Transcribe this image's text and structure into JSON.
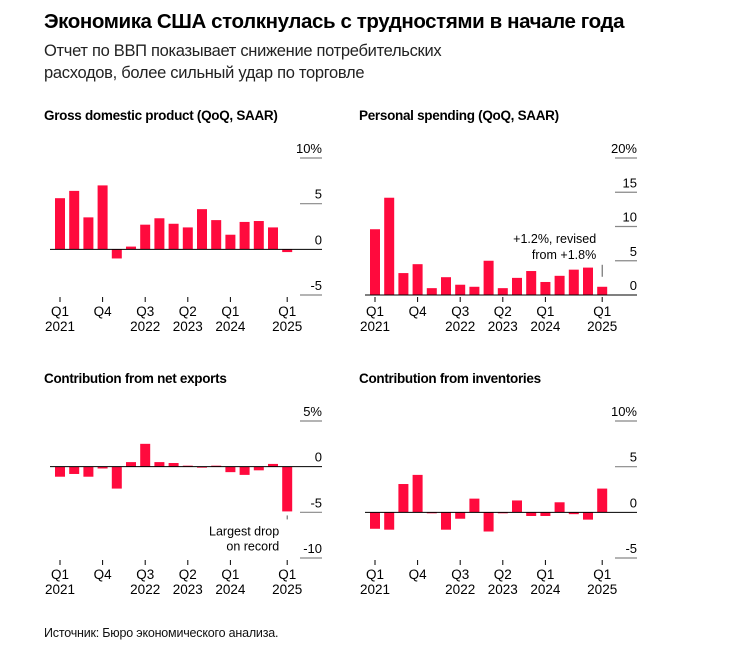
{
  "header": {
    "title": "Экономика США столкнулась с трудностями в начале года",
    "subtitle": "Отчет по ВВП показывает снижение потребительских расходов, более сильный удар по торговле"
  },
  "footer": {
    "source": "Источник: Бюро экономического анализа."
  },
  "colors": {
    "bar": "#ff0a3d",
    "axis": "#000000",
    "gridline": "#888888",
    "text": "#000000"
  },
  "chart_data": [
    {
      "type": "bar",
      "title": "Gross domestic product (QoQ, SAAR)",
      "categories": [
        "Q1 2021",
        "Q2 2021",
        "Q3 2021",
        "Q4 2021",
        "Q1 2022",
        "Q2 2022",
        "Q3 2022",
        "Q4 2022",
        "Q1 2023",
        "Q2 2023",
        "Q3 2023",
        "Q4 2023",
        "Q1 2024",
        "Q2 2024",
        "Q3 2024",
        "Q4 2024",
        "Q1 2025"
      ],
      "values": [
        5.6,
        6.4,
        3.5,
        7.0,
        -1.0,
        0.3,
        2.7,
        3.4,
        2.8,
        2.4,
        4.4,
        3.2,
        1.6,
        3.0,
        3.1,
        2.4,
        -0.3
      ],
      "ylim": [
        -5,
        10
      ],
      "yticks": [
        10,
        5,
        0,
        -5
      ],
      "ytick_labels": [
        "10%",
        "5",
        "0",
        "-5"
      ],
      "xticks": [
        {
          "index": 0,
          "line1": "Q1",
          "line2": "2021"
        },
        {
          "index": 3,
          "line1": "Q4",
          "line2": ""
        },
        {
          "index": 6,
          "line1": "Q3",
          "line2": "2022"
        },
        {
          "index": 9,
          "line1": "Q2",
          "line2": "2023"
        },
        {
          "index": 12,
          "line1": "Q1",
          "line2": "2024"
        },
        {
          "index": 16,
          "line1": "Q1",
          "line2": "2025"
        }
      ],
      "annotation": null
    },
    {
      "type": "bar",
      "title": "Personal spending (QoQ, SAAR)",
      "categories": [
        "Q1 2021",
        "Q2 2021",
        "Q3 2021",
        "Q4 2021",
        "Q1 2022",
        "Q2 2022",
        "Q3 2022",
        "Q4 2022",
        "Q1 2023",
        "Q2 2023",
        "Q3 2023",
        "Q4 2023",
        "Q1 2024",
        "Q2 2024",
        "Q3 2024",
        "Q4 2024",
        "Q1 2025"
      ],
      "values": [
        9.6,
        14.2,
        3.2,
        4.5,
        1.0,
        2.6,
        1.5,
        1.2,
        5.0,
        1.0,
        2.5,
        3.5,
        1.9,
        2.8,
        3.7,
        4.0,
        1.2
      ],
      "ylim": [
        0,
        20
      ],
      "yticks": [
        20,
        15,
        10,
        5,
        0
      ],
      "ytick_labels": [
        "20%",
        "15",
        "10",
        "5",
        "0"
      ],
      "xticks": [
        {
          "index": 0,
          "line1": "Q1",
          "line2": "2021"
        },
        {
          "index": 3,
          "line1": "Q4",
          "line2": ""
        },
        {
          "index": 6,
          "line1": "Q3",
          "line2": "2022"
        },
        {
          "index": 9,
          "line1": "Q2",
          "line2": "2023"
        },
        {
          "index": 12,
          "line1": "Q1",
          "line2": "2024"
        },
        {
          "index": 16,
          "line1": "Q1",
          "line2": "2025"
        }
      ],
      "annotation": {
        "index": 16,
        "line1": "+1.2%, revised",
        "line2": "from +1.8%",
        "placement": "above"
      }
    },
    {
      "type": "bar",
      "title": "Contribution from net exports",
      "categories": [
        "Q1 2021",
        "Q2 2021",
        "Q3 2021",
        "Q4 2021",
        "Q1 2022",
        "Q2 2022",
        "Q3 2022",
        "Q4 2022",
        "Q1 2023",
        "Q2 2023",
        "Q3 2023",
        "Q4 2023",
        "Q1 2024",
        "Q2 2024",
        "Q3 2024",
        "Q4 2024",
        "Q1 2025"
      ],
      "values": [
        -1.1,
        -0.8,
        -1.1,
        -0.2,
        -2.4,
        0.5,
        2.5,
        0.5,
        0.4,
        0.0,
        -0.05,
        0.1,
        -0.6,
        -0.9,
        -0.4,
        0.3,
        -4.9
      ],
      "ylim": [
        -10,
        5
      ],
      "yticks": [
        5,
        0,
        -5,
        -10
      ],
      "ytick_labels": [
        "5%",
        "0",
        "-5",
        "-10"
      ],
      "xticks": [
        {
          "index": 0,
          "line1": "Q1",
          "line2": "2021"
        },
        {
          "index": 3,
          "line1": "Q4",
          "line2": ""
        },
        {
          "index": 6,
          "line1": "Q3",
          "line2": "2022"
        },
        {
          "index": 9,
          "line1": "Q2",
          "line2": "2023"
        },
        {
          "index": 12,
          "line1": "Q1",
          "line2": "2024"
        },
        {
          "index": 16,
          "line1": "Q1",
          "line2": "2025"
        }
      ],
      "annotation": {
        "index": 16,
        "line1": "Largest drop",
        "line2": "on record",
        "placement": "below"
      }
    },
    {
      "type": "bar",
      "title": "Contribution from inventories",
      "categories": [
        "Q1 2021",
        "Q2 2021",
        "Q3 2021",
        "Q4 2021",
        "Q1 2022",
        "Q2 2022",
        "Q3 2022",
        "Q4 2022",
        "Q1 2023",
        "Q2 2023",
        "Q3 2023",
        "Q4 2023",
        "Q1 2024",
        "Q2 2024",
        "Q3 2024",
        "Q4 2024",
        "Q1 2025"
      ],
      "values": [
        -1.8,
        -1.9,
        3.1,
        4.1,
        -0.1,
        -1.9,
        -0.7,
        1.5,
        -2.1,
        -0.05,
        1.3,
        -0.4,
        -0.4,
        1.1,
        -0.2,
        -0.8,
        2.6
      ],
      "ylim": [
        -5,
        10
      ],
      "yticks": [
        10,
        5,
        0,
        -5
      ],
      "ytick_labels": [
        "10%",
        "5",
        "0",
        "-5"
      ],
      "xticks": [
        {
          "index": 0,
          "line1": "Q1",
          "line2": "2021"
        },
        {
          "index": 3,
          "line1": "Q4",
          "line2": ""
        },
        {
          "index": 6,
          "line1": "Q3",
          "line2": "2022"
        },
        {
          "index": 9,
          "line1": "Q2",
          "line2": "2023"
        },
        {
          "index": 12,
          "line1": "Q1",
          "line2": "2024"
        },
        {
          "index": 16,
          "line1": "Q1",
          "line2": "2025"
        }
      ],
      "annotation": null
    }
  ]
}
